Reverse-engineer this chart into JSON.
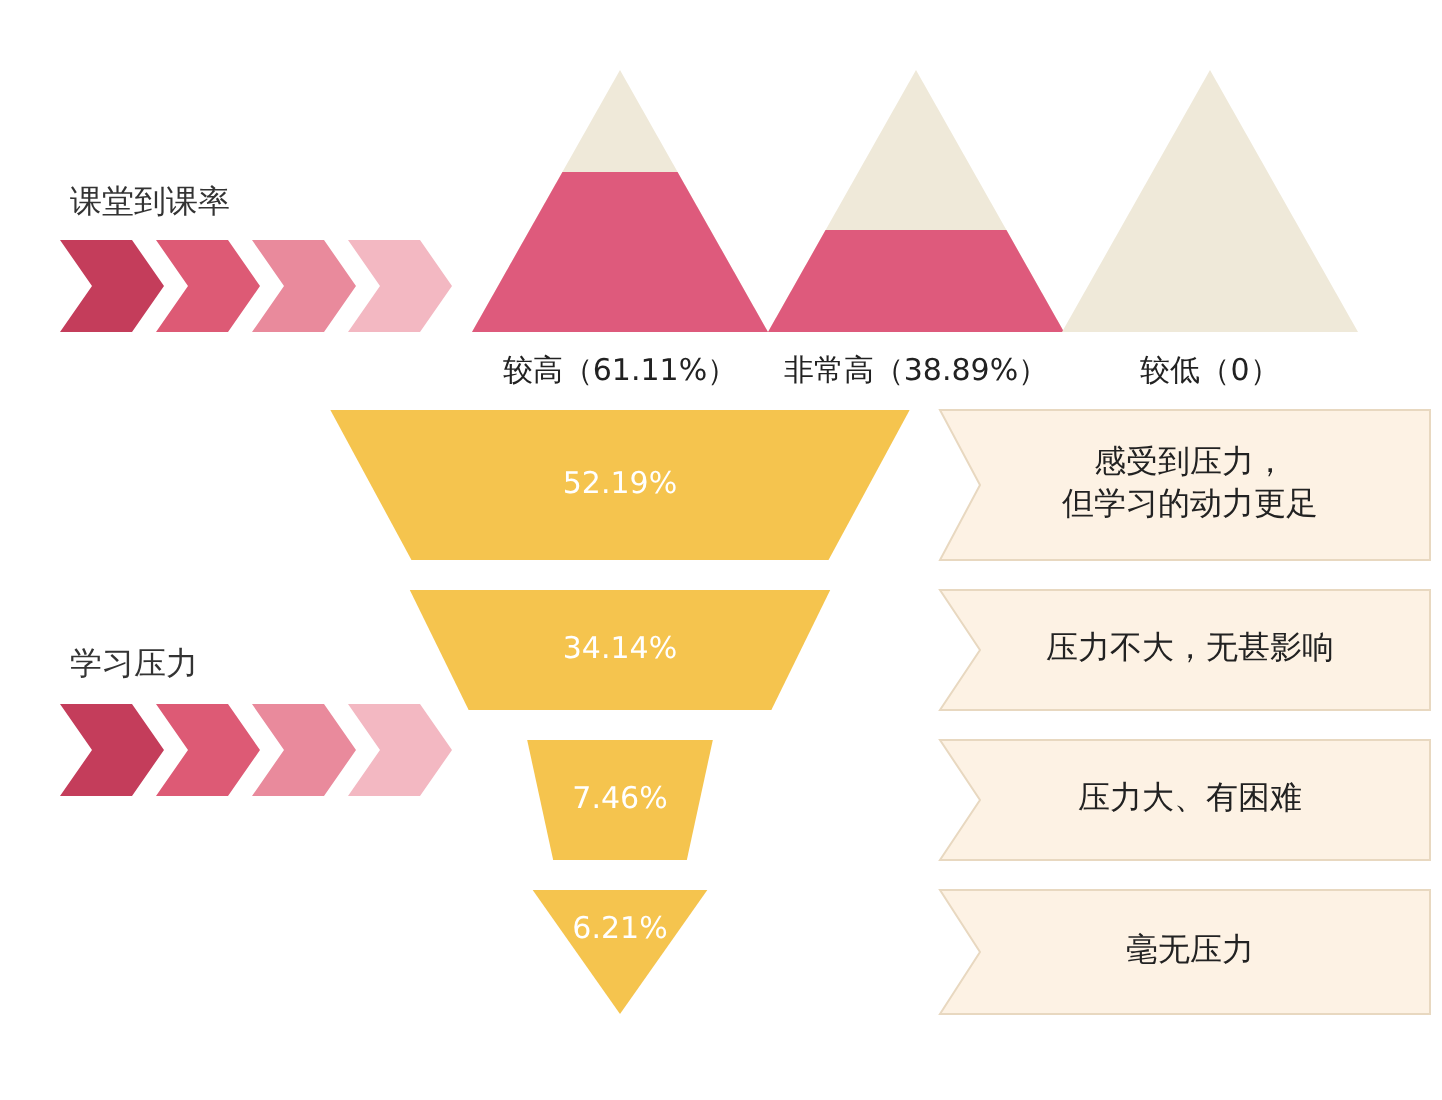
{
  "chart_data": [
    {
      "type": "other",
      "title": "课堂到课率",
      "categories": [
        "较高",
        "非常高",
        "较低"
      ],
      "values": [
        61.11,
        38.89,
        0
      ],
      "value_labels": [
        "（61.11%）",
        "（38.89%）",
        "（0）"
      ],
      "color": "#de5a7c"
    },
    {
      "type": "other",
      "title": "学习压力",
      "categories": [
        "感受到压力，但学习的动力更足",
        "压力不大，无甚影响",
        "压力大、有困难",
        "毫无压力"
      ],
      "values": [
        52.19,
        34.14,
        7.46,
        6.21
      ],
      "value_labels": [
        "52.19%",
        "34.14%",
        "7.46%",
        "6.21%"
      ],
      "color": "#f5c44e"
    }
  ]
}
